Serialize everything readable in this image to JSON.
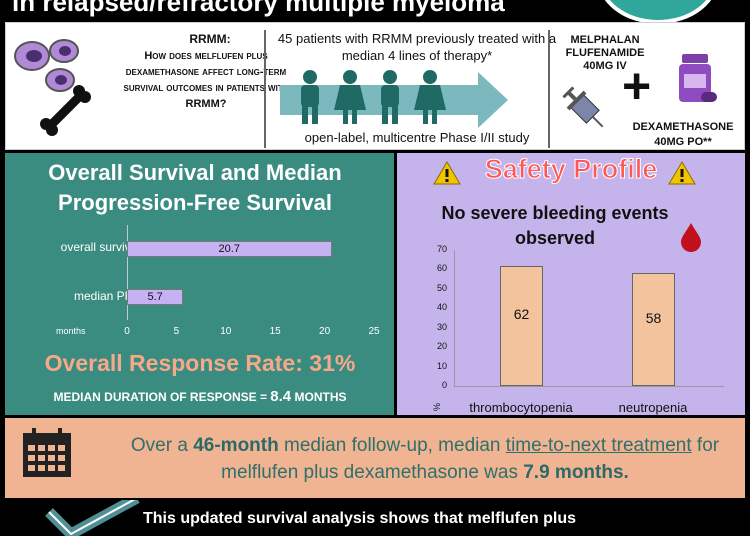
{
  "title": "in relapsed/refractory multiple myeloma",
  "colors": {
    "teal": "#3a8b80",
    "lavender": "#c5b4ec",
    "peach": "#f0b492",
    "os_bar": "#c6b2f3",
    "safety_bar": "#f3c39e",
    "warning_red": "#ff5757"
  },
  "icons": [
    "cells-icon",
    "bone-icon",
    "people-icon",
    "arrow-icon",
    "syringe-icon",
    "plus-icon",
    "pill-bottle-icon",
    "warning-icon",
    "blood-drop-icon",
    "calendar-icon",
    "checkmark-icon"
  ],
  "question": {
    "heading": "RRMM:",
    "text": "How does melflufen plus dexamethasone affect long-term survival outcomes in patients with RRMM?"
  },
  "study": {
    "patients": "45 patients with RRMM previously treated with a median 4 lines of therapy*",
    "design": "open-label, multicentre Phase I/II study"
  },
  "treatment": {
    "drug1": "MELPHALAN FLUFENAMIDE",
    "dose1": "40MG IV",
    "drug2": "DEXAMETHASONE",
    "dose2": "40MG PO**"
  },
  "survival": {
    "title": "Overall Survival and Median Progression-Free Survival",
    "orr": "Overall Response Rate: 31%",
    "mdr_label": "MEDIAN DURATION OF RESPONSE = ",
    "mdr_value": "8.4",
    "mdr_unit": " MONTHS"
  },
  "safety": {
    "title": "Safety Profile",
    "bleeding": "No severe bleeding events observed"
  },
  "ttnt": {
    "part1": "Over a ",
    "bold1": "46-month",
    "part2": " median follow-up, median ",
    "link": "time-to-next treatment",
    "part3": " for melflufen plus dexamethasone was ",
    "bold2": "7.9 months."
  },
  "conclusion": "This updated survival analysis shows that melflufen plus",
  "chart_data": [
    {
      "type": "bar",
      "orientation": "horizontal",
      "categories": [
        "overall survival",
        "median PFS"
      ],
      "values": [
        20.7,
        5.7
      ],
      "data_labels": [
        "20.7",
        "5.7"
      ],
      "xlabel": "months",
      "xlim": [
        0,
        25
      ],
      "xticks": [
        "0",
        "5",
        "10",
        "15",
        "20",
        "25"
      ]
    },
    {
      "type": "bar",
      "categories": [
        "thrombocytopenia",
        "neutropenia"
      ],
      "values": [
        62,
        58
      ],
      "data_labels": [
        "62",
        "58"
      ],
      "ylabel": "%",
      "ylim": [
        0,
        70
      ],
      "yticks": [
        "0",
        "10",
        "20",
        "30",
        "40",
        "50",
        "60",
        "70"
      ]
    }
  ]
}
